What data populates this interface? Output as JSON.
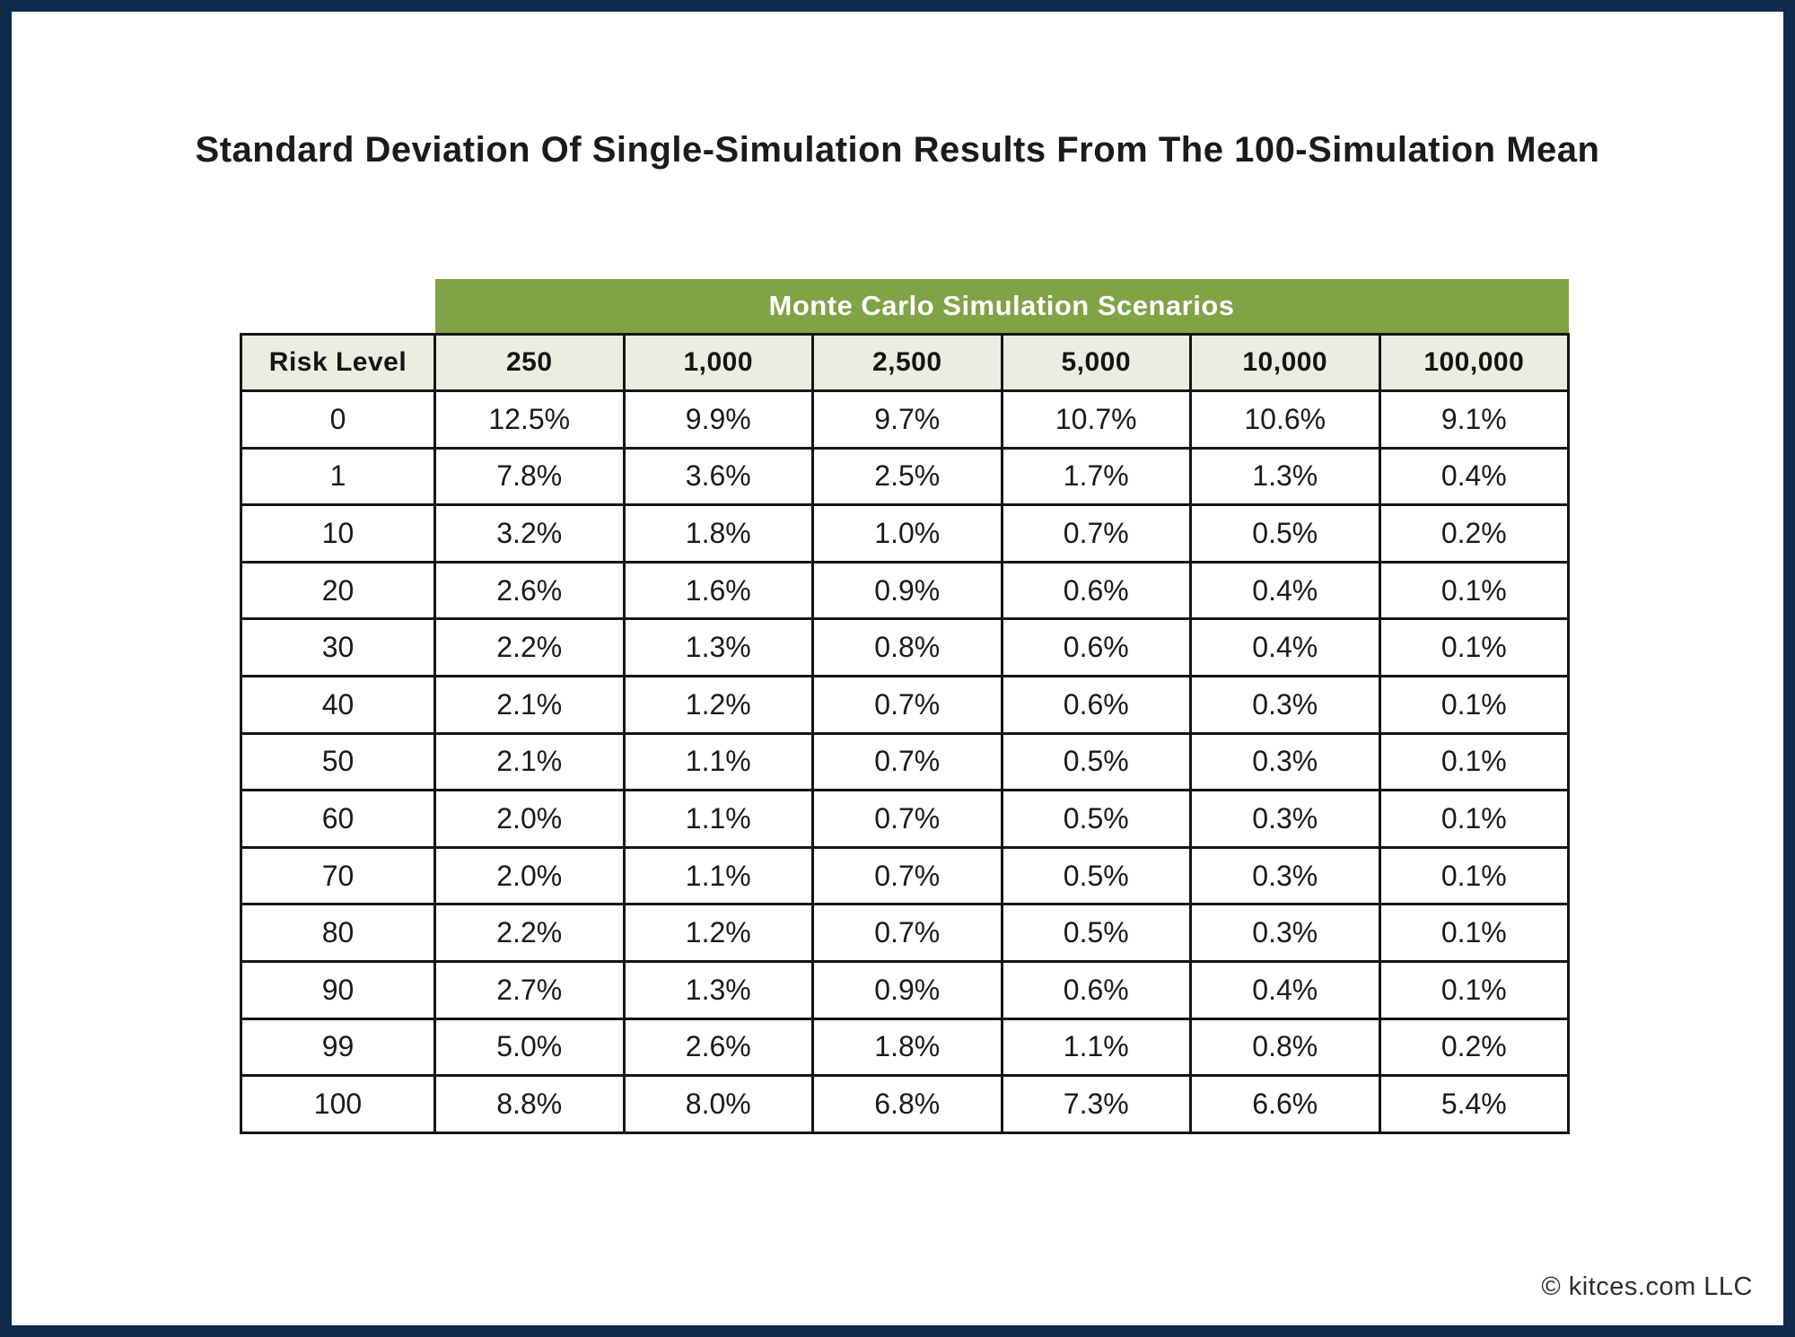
{
  "page": {
    "title": "Standard Deviation Of Single-Simulation Results From The 100-Simulation Mean",
    "footer": "© kitces.com LLC"
  },
  "table": {
    "banner": "Monte Carlo Simulation Scenarios",
    "corner_label": "Risk Level",
    "columns": [
      "250",
      "1,000",
      "2,500",
      "5,000",
      "10,000",
      "100,000"
    ],
    "rows": [
      {
        "risk": "0",
        "values": [
          "12.5%",
          "9.9%",
          "9.7%",
          "10.7%",
          "10.6%",
          "9.1%"
        ]
      },
      {
        "risk": "1",
        "values": [
          "7.8%",
          "3.6%",
          "2.5%",
          "1.7%",
          "1.3%",
          "0.4%"
        ]
      },
      {
        "risk": "10",
        "values": [
          "3.2%",
          "1.8%",
          "1.0%",
          "0.7%",
          "0.5%",
          "0.2%"
        ]
      },
      {
        "risk": "20",
        "values": [
          "2.6%",
          "1.6%",
          "0.9%",
          "0.6%",
          "0.4%",
          "0.1%"
        ]
      },
      {
        "risk": "30",
        "values": [
          "2.2%",
          "1.3%",
          "0.8%",
          "0.6%",
          "0.4%",
          "0.1%"
        ]
      },
      {
        "risk": "40",
        "values": [
          "2.1%",
          "1.2%",
          "0.7%",
          "0.6%",
          "0.3%",
          "0.1%"
        ]
      },
      {
        "risk": "50",
        "values": [
          "2.1%",
          "1.1%",
          "0.7%",
          "0.5%",
          "0.3%",
          "0.1%"
        ]
      },
      {
        "risk": "60",
        "values": [
          "2.0%",
          "1.1%",
          "0.7%",
          "0.5%",
          "0.3%",
          "0.1%"
        ]
      },
      {
        "risk": "70",
        "values": [
          "2.0%",
          "1.1%",
          "0.7%",
          "0.5%",
          "0.3%",
          "0.1%"
        ]
      },
      {
        "risk": "80",
        "values": [
          "2.2%",
          "1.2%",
          "0.7%",
          "0.5%",
          "0.3%",
          "0.1%"
        ]
      },
      {
        "risk": "90",
        "values": [
          "2.7%",
          "1.3%",
          "0.9%",
          "0.6%",
          "0.4%",
          "0.1%"
        ]
      },
      {
        "risk": "99",
        "values": [
          "5.0%",
          "2.6%",
          "1.8%",
          "1.1%",
          "0.8%",
          "0.2%"
        ]
      },
      {
        "risk": "100",
        "values": [
          "8.8%",
          "8.0%",
          "6.8%",
          "7.3%",
          "6.6%",
          "5.4%"
        ]
      }
    ]
  },
  "colors": {
    "banner_green": "#7fa345",
    "header_row_bg": "#eaeee0",
    "frame_navy": "#0e2a4c",
    "cell_border": "#151515",
    "text": "#1a1a1a"
  },
  "chart_data": {
    "type": "table",
    "title": "Standard Deviation Of Single-Simulation Results From The 100-Simulation Mean",
    "group_header": "Monte Carlo Simulation Scenarios",
    "row_header": "Risk Level",
    "columns": [
      "250",
      "1,000",
      "2,500",
      "5,000",
      "10,000",
      "100,000"
    ],
    "risk_levels": [
      0,
      1,
      10,
      20,
      30,
      40,
      50,
      60,
      70,
      80,
      90,
      99,
      100
    ],
    "values_pct": [
      [
        12.5,
        9.9,
        9.7,
        10.7,
        10.6,
        9.1
      ],
      [
        7.8,
        3.6,
        2.5,
        1.7,
        1.3,
        0.4
      ],
      [
        3.2,
        1.8,
        1.0,
        0.7,
        0.5,
        0.2
      ],
      [
        2.6,
        1.6,
        0.9,
        0.6,
        0.4,
        0.1
      ],
      [
        2.2,
        1.3,
        0.8,
        0.6,
        0.4,
        0.1
      ],
      [
        2.1,
        1.2,
        0.7,
        0.6,
        0.3,
        0.1
      ],
      [
        2.1,
        1.1,
        0.7,
        0.5,
        0.3,
        0.1
      ],
      [
        2.0,
        1.1,
        0.7,
        0.5,
        0.3,
        0.1
      ],
      [
        2.0,
        1.1,
        0.7,
        0.5,
        0.3,
        0.1
      ],
      [
        2.2,
        1.2,
        0.7,
        0.5,
        0.3,
        0.1
      ],
      [
        2.7,
        1.3,
        0.9,
        0.6,
        0.4,
        0.1
      ],
      [
        5.0,
        2.6,
        1.8,
        1.1,
        0.8,
        0.2
      ],
      [
        8.8,
        8.0,
        6.8,
        7.3,
        6.6,
        5.4
      ]
    ],
    "annotations": [
      "© kitces.com LLC"
    ],
    "grid": true,
    "legend": false
  }
}
